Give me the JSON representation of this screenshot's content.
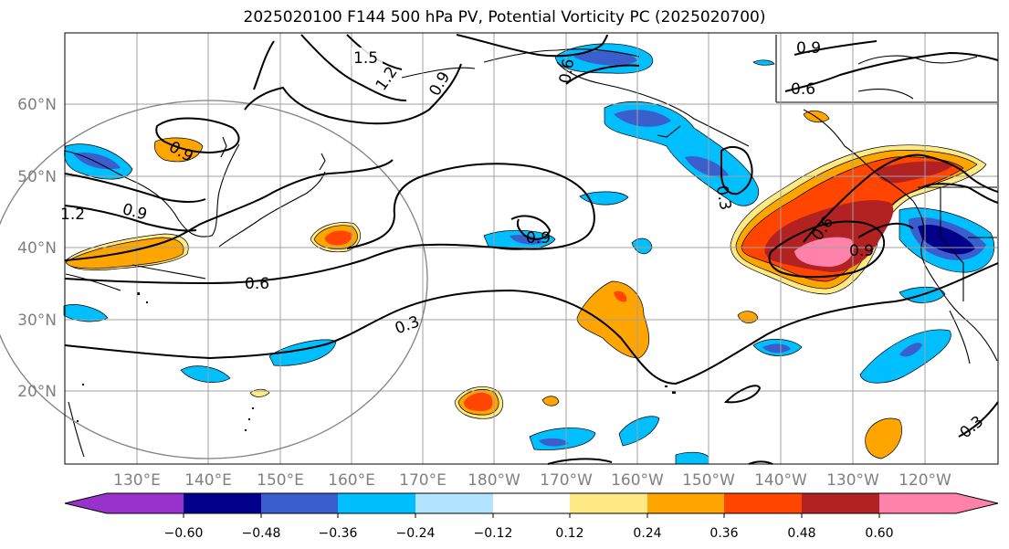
{
  "title": "2025020100 F144 500 hPa PV, Potential Vorticity PC (2025020700)",
  "map": {
    "lat_labels": [
      "60°N",
      "50°N",
      "40°N",
      "30°N",
      "20°N"
    ],
    "lon_labels": [
      "130°E",
      "140°E",
      "150°E",
      "160°E",
      "170°E",
      "180°W",
      "170°W",
      "160°W",
      "150°W",
      "140°W",
      "130°W",
      "120°W"
    ],
    "contour_labels": [
      "1.5",
      "1.2",
      "0.9",
      "0.6",
      "0.9",
      "0.6",
      "1.2",
      "0.9",
      "0.6",
      "0.3",
      "0.9",
      "0.3",
      "0.6",
      "0.9",
      "0.3",
      "0.9"
    ]
  },
  "colorbar": {
    "ticks": [
      "−0.60",
      "−0.48",
      "−0.36",
      "−0.24",
      "−0.12",
      "0.12",
      "0.24",
      "0.36",
      "0.48",
      "0.60"
    ],
    "colors": [
      "#9932cc",
      "#00008b",
      "#3a5fcd",
      "#00bfff",
      "#b2e4ff",
      "#ffffff",
      "#ffe985",
      "#ffa500",
      "#ff4500",
      "#b22222",
      "#ff82ab",
      "#ff82ab"
    ]
  }
}
